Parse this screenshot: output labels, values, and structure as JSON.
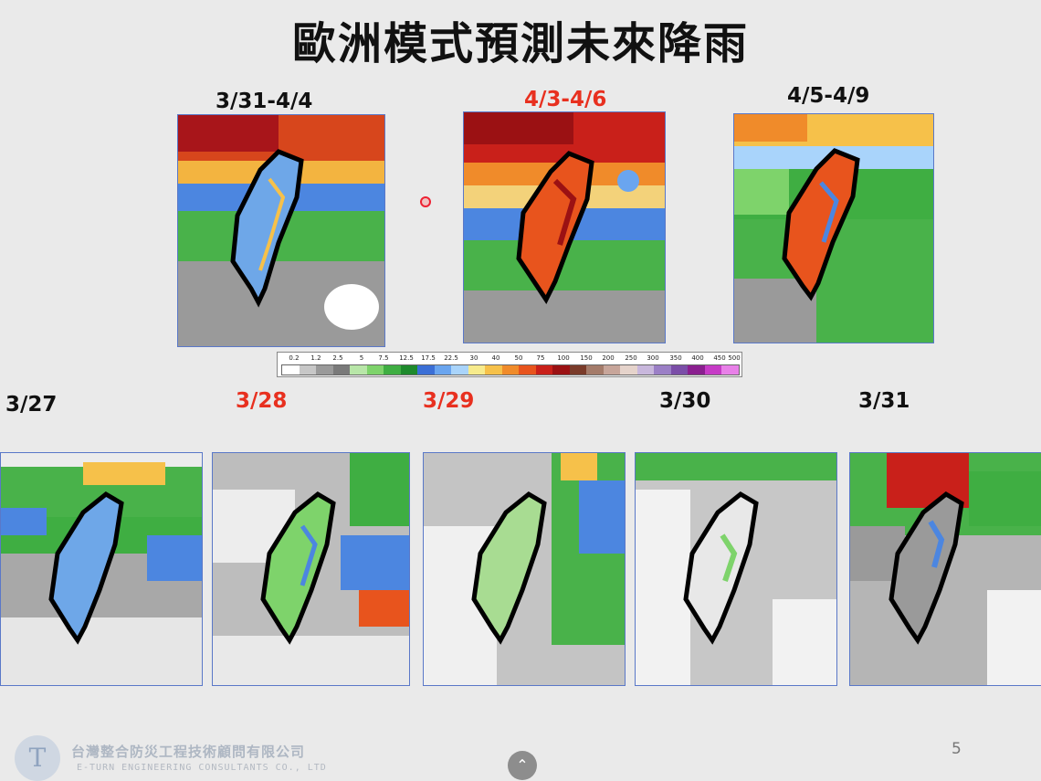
{
  "title": "歐洲模式預測未來降雨",
  "accumulated_panels": [
    {
      "label": "3/31-4/4",
      "highlight": false,
      "color": "#111111"
    },
    {
      "label": "4/3-4/6",
      "highlight": true,
      "color": "#e8301f"
    },
    {
      "label": "4/5-4/9",
      "highlight": false,
      "color": "#111111"
    }
  ],
  "daily_panels": [
    {
      "label": "3/27",
      "highlight": false
    },
    {
      "label": "3/28",
      "highlight": true
    },
    {
      "label": "3/29",
      "highlight": true
    },
    {
      "label": "3/30",
      "highlight": false
    },
    {
      "label": "3/31",
      "highlight": false
    }
  ],
  "legend": {
    "ticks": [
      "0.2",
      "1.2",
      "2.5",
      "5",
      "7.5",
      "12.5",
      "17.5",
      "22.5",
      "30",
      "40",
      "50",
      "75",
      "100",
      "150",
      "200",
      "250",
      "300",
      "350",
      "400",
      "450",
      "500"
    ],
    "colors": [
      "#ffffff",
      "#c7c7c7",
      "#9a9a9a",
      "#7a7a7a",
      "#b8e6a8",
      "#7ed36b",
      "#3fae42",
      "#1e8a2c",
      "#3b6fd6",
      "#6aa5ef",
      "#a9d4fb",
      "#f7eb8c",
      "#f6c14a",
      "#f08b2a",
      "#e8541d",
      "#c9201a",
      "#9b1113",
      "#7a3b2a",
      "#a47b6a",
      "#c7a59a",
      "#e5d3cb",
      "#c8b7dc",
      "#9b7fc6",
      "#7b4ea8",
      "#8a1f8f",
      "#c63bc6",
      "#e880e8"
    ]
  },
  "footer": {
    "company_zh": "台灣整合防災工程技術顧問有限公司",
    "company_en": "E-TURN ENGINEERING CONSULTANTS CO., LTD",
    "page_number": "5",
    "logo_letter": "T"
  },
  "scroll_up_icon": "chevron-up-icon"
}
